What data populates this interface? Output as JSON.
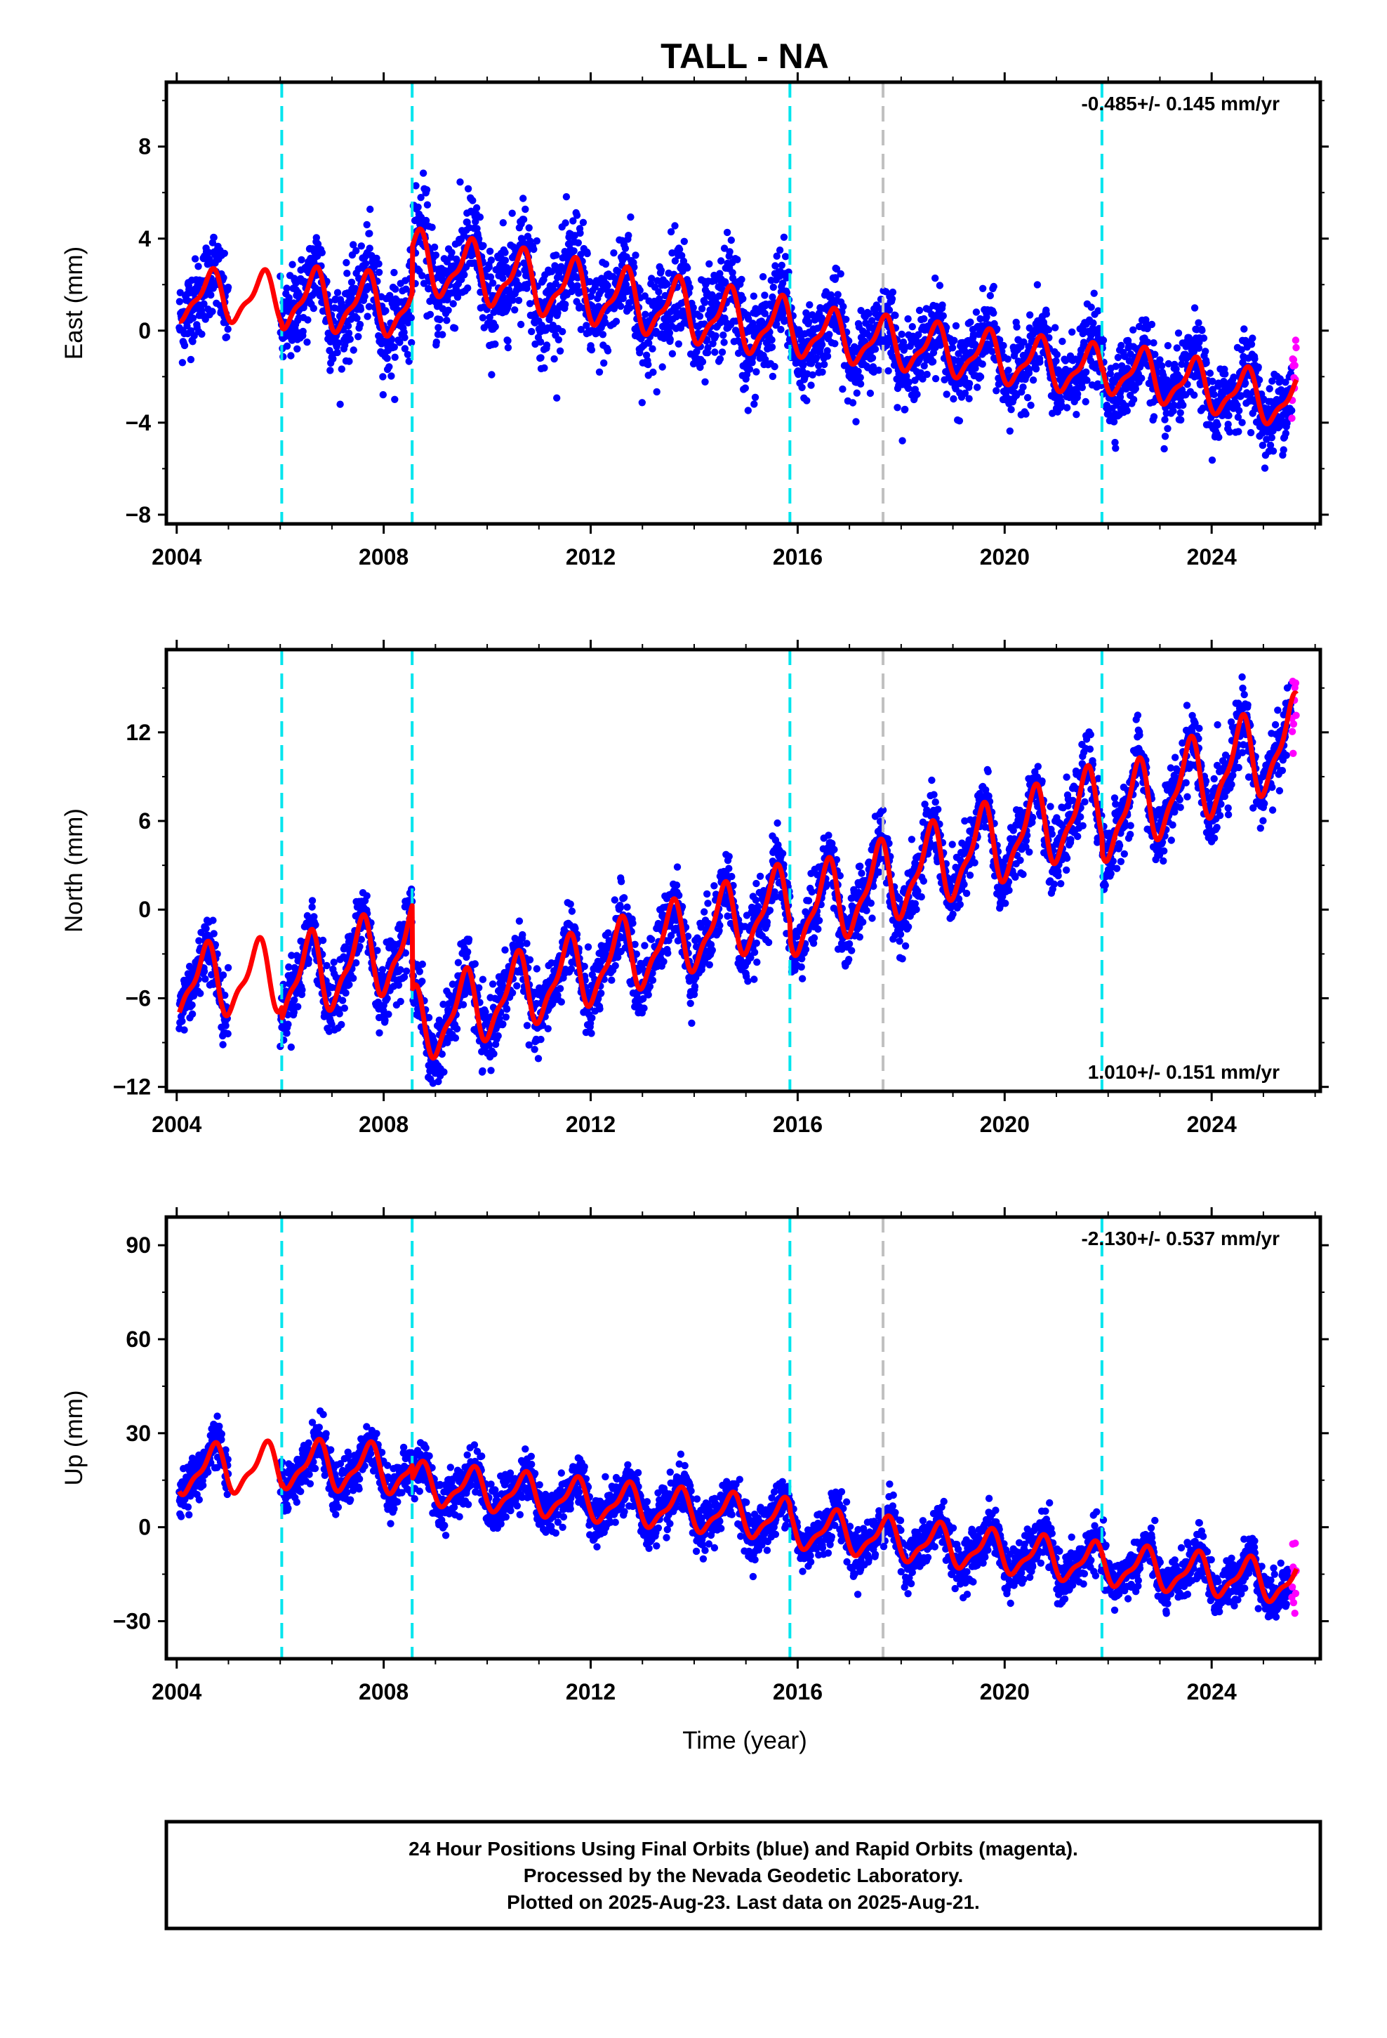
{
  "title": "TALL - NA",
  "xlabel": "Time (year)",
  "footer": {
    "lines": [
      "24 Hour Positions Using Final Orbits (blue) and Rapid Orbits (magenta).",
      "Processed by the Nevada Geodetic Laboratory.",
      "Plotted on 2025-Aug-23. Last data on 2025-Aug-21."
    ]
  },
  "colors": {
    "final_orbits": "#0000ff",
    "rapid_orbits": "#ff00ff",
    "model": "#ff0000",
    "event_line": "#00e5ee",
    "gray_line": "#c0c0c0"
  },
  "chart_data": [
    {
      "type": "scatter",
      "ylabel": "East (mm)",
      "rate_label": "-0.485+/- 0.145 mm/yr",
      "xlim": [
        2003.8,
        2026.1
      ],
      "ylim": [
        -8.4,
        10.8
      ],
      "yticks": [
        -8,
        -4,
        0,
        4,
        8
      ],
      "xticks": [
        2004,
        2008,
        2012,
        2016,
        2020,
        2024
      ],
      "x_start": 2004.05,
      "x_end": 2025.64,
      "rapid_start": 2025.55,
      "segments": [
        {
          "x": [
            2004.05,
            2006.03
          ],
          "v0": 1.5,
          "v1": 1.4,
          "amp": 1.0,
          "scatter": 1.2
        },
        {
          "x": [
            2006.03,
            2008.55
          ],
          "v0": 1.4,
          "v1": 1.0,
          "amp": 1.2,
          "scatter": 1.3
        },
        {
          "x": [
            2008.55,
            2015.85
          ],
          "v0": 3.0,
          "v1": 0.0,
          "amp": 1.2,
          "scatter": 1.5
        },
        {
          "x": [
            2015.85,
            2021.88
          ],
          "v0": 0.0,
          "v1": -1.8,
          "amp": 1.0,
          "scatter": 1.1
        },
        {
          "x": [
            2021.88,
            2025.64
          ],
          "v0": -1.6,
          "v1": -3.2,
          "amp": 1.0,
          "scatter": 1.1
        }
      ],
      "phase": 0.65,
      "gap": [
        2005.0,
        2006.0
      ]
    },
    {
      "type": "scatter",
      "ylabel": "North (mm)",
      "rate_label": "1.010+/- 0.151 mm/yr",
      "xlim": [
        2003.8,
        2026.1
      ],
      "ylim": [
        -12.3,
        17.6
      ],
      "yticks": [
        -12,
        -6,
        0,
        6,
        12
      ],
      "xticks": [
        2004,
        2008,
        2012,
        2016,
        2020,
        2024
      ],
      "x_start": 2004.05,
      "x_end": 2025.64,
      "rapid_start": 2025.55,
      "segments": [
        {
          "x": [
            2004.05,
            2006.03
          ],
          "v0": -5.0,
          "v1": -4.5,
          "amp": 2.2,
          "scatter": 1.5
        },
        {
          "x": [
            2006.03,
            2008.55
          ],
          "v0": -5.0,
          "v1": -2.5,
          "amp": 2.5,
          "scatter": 1.5
        },
        {
          "x": [
            2008.55,
            2015.85
          ],
          "v0": -8.0,
          "v1": 0.5,
          "amp": 2.3,
          "scatter": 1.5
        },
        {
          "x": [
            2015.85,
            2021.88
          ],
          "v0": -0.5,
          "v1": 7.0,
          "amp": 2.5,
          "scatter": 1.5
        },
        {
          "x": [
            2021.88,
            2025.64
          ],
          "v0": 6.0,
          "v1": 11.5,
          "amp": 2.6,
          "scatter": 1.5
        }
      ],
      "phase": 0.55,
      "gap": [
        2005.0,
        2006.0
      ]
    },
    {
      "type": "scatter",
      "ylabel": "Up (mm)",
      "rate_label": "-2.130+/- 0.537 mm/yr",
      "xlim": [
        2003.8,
        2026.1
      ],
      "ylim": [
        -42,
        99
      ],
      "yticks": [
        -30,
        0,
        30,
        60,
        90
      ],
      "xticks": [
        2004,
        2008,
        2012,
        2016,
        2020,
        2024
      ],
      "x_start": 2004.05,
      "x_end": 2025.64,
      "rapid_start": 2025.55,
      "segments": [
        {
          "x": [
            2004.05,
            2006.03
          ],
          "v0": 18,
          "v1": 19,
          "amp": 7,
          "scatter": 5
        },
        {
          "x": [
            2006.03,
            2008.55
          ],
          "v0": 20,
          "v1": 18,
          "amp": 7,
          "scatter": 5
        },
        {
          "x": [
            2008.55,
            2015.85
          ],
          "v0": 14,
          "v1": 2,
          "amp": 6,
          "scatter": 5
        },
        {
          "x": [
            2015.85,
            2021.88
          ],
          "v0": 0,
          "v1": -12,
          "amp": 6,
          "scatter": 5
        },
        {
          "x": [
            2021.88,
            2025.64
          ],
          "v0": -12,
          "v1": -18,
          "amp": 6,
          "scatter": 5
        }
      ],
      "phase": 0.7,
      "gap": [
        2005.0,
        2006.0
      ]
    }
  ],
  "event_lines": [
    2006.03,
    2008.55,
    2015.85,
    2021.88
  ],
  "gray_lines": [
    2017.65
  ]
}
